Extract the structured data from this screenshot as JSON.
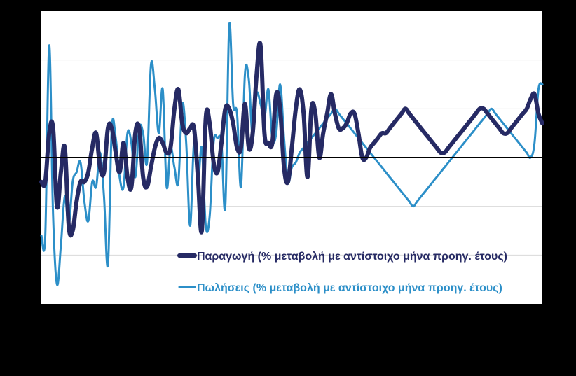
{
  "chart_data": {
    "type": "line",
    "title": "",
    "xlabel": "",
    "ylabel": "",
    "ylim": [
      -3,
      3
    ],
    "grid": true,
    "legend_position": "bottom-right",
    "colors": {
      "background": "#000000",
      "plot_area": "#ffffff",
      "gridline": "#d9d9d9",
      "zero_line": "#000000",
      "production": "#262A64",
      "sales": "#2C8FC8"
    },
    "x": [
      1,
      2,
      3,
      4,
      5,
      6,
      7,
      8,
      9,
      10,
      11,
      12,
      13,
      14,
      15,
      16,
      17,
      18,
      19,
      20,
      21,
      22,
      23,
      24,
      25,
      26,
      27,
      28,
      29,
      30,
      31,
      32,
      33,
      34,
      35,
      36,
      37,
      38,
      39,
      40,
      41,
      42,
      43,
      44,
      45,
      46,
      47,
      48,
      49,
      50,
      51,
      52,
      53,
      54,
      55,
      56,
      57,
      58,
      59,
      60,
      61,
      62,
      63,
      64,
      65,
      66,
      67,
      68,
      69,
      70,
      71,
      72,
      73,
      74,
      75,
      76,
      77,
      78,
      79,
      80,
      81,
      82,
      83,
      84,
      85,
      86,
      87,
      88,
      89,
      90,
      91,
      92,
      93,
      94,
      95,
      96,
      97,
      98,
      99,
      100,
      101,
      102,
      103,
      104,
      105,
      106,
      107,
      108,
      109,
      110,
      111,
      112,
      113,
      114,
      115,
      116,
      117,
      118,
      119,
      120,
      121,
      122,
      123,
      124,
      125,
      126,
      127,
      128,
      129
    ],
    "series": [
      {
        "name": "Παραγωγή (% μεταβολή με αντίστοιχο μήνα προηγ. έτους)",
        "color": "#262A64",
        "values": [
          -0.5,
          -0.5,
          0.5,
          0.6,
          -1.0,
          -0.3,
          0.2,
          -1.4,
          -1.5,
          -0.9,
          -0.5,
          -0.5,
          -0.3,
          0.2,
          0.5,
          -0.2,
          -0.3,
          0.6,
          0.6,
          0.1,
          -0.3,
          0.3,
          -0.4,
          -0.6,
          0.5,
          0.6,
          -0.4,
          -0.6,
          -0.2,
          0.2,
          0.4,
          0.3,
          0.1,
          0.2,
          1.0,
          1.4,
          0.7,
          0.5,
          0.6,
          0.6,
          -0.4,
          -1.5,
          0.8,
          0.7,
          -0.1,
          -0.3,
          0.3,
          1.0,
          1.0,
          0.7,
          0.2,
          0.2,
          1.1,
          0.2,
          0.5,
          1.7,
          2.3,
          0.5,
          0.3,
          0.3,
          1.3,
          1.0,
          -0.2,
          -0.5,
          0.2,
          1.0,
          1.4,
          0.9,
          -0.4,
          1.0,
          0.9,
          0.0,
          0.5,
          0.9,
          1.3,
          0.9,
          0.6,
          0.6,
          0.7,
          0.9,
          0.9,
          0.5,
          0.0,
          0.0,
          0.2,
          0.3,
          0.4,
          0.5,
          0.5,
          0.6,
          0.7,
          0.8,
          0.9,
          1.0,
          0.9,
          0.8,
          0.7,
          0.6,
          0.5,
          0.4,
          0.3,
          0.2,
          0.1,
          0.1,
          0.2,
          0.3,
          0.4,
          0.5,
          0.6,
          0.7,
          0.8,
          0.9,
          1.0,
          1.0,
          0.9,
          0.8,
          0.7,
          0.6,
          0.5,
          0.5,
          0.6,
          0.7,
          0.8,
          0.9,
          1.0,
          1.2,
          1.3,
          0.9,
          0.7
        ]
      },
      {
        "name": "Πωλήσεις (% μεταβολή με αντίστοιχο μήνα προηγ. έτους)",
        "color": "#2C8FC8",
        "values": [
          -1.6,
          -1.6,
          2.3,
          -1.2,
          -2.6,
          -1.8,
          -0.8,
          -1.4,
          -0.5,
          -0.3,
          -0.1,
          -0.9,
          -1.3,
          -0.5,
          -0.6,
          0.1,
          -0.8,
          -2.2,
          0.6,
          0.4,
          -0.4,
          -0.6,
          0.5,
          0.3,
          -0.4,
          0.6,
          0.5,
          -0.1,
          1.9,
          1.4,
          0.5,
          1.4,
          -0.6,
          0.2,
          -0.2,
          -0.5,
          1.1,
          0.3,
          -1.4,
          0.3,
          -0.5,
          0.2,
          -1.4,
          -1.2,
          0.3,
          0.4,
          0.3,
          -1.0,
          2.7,
          1.1,
          0.9,
          -0.6,
          1.7,
          1.6,
          0.4,
          1.3,
          1.1,
          0.8,
          1.4,
          0.4,
          0.5,
          1.5,
          0.4,
          -0.5,
          -0.2,
          -0.1,
          0.1,
          0.2,
          0.3,
          0.4,
          0.5,
          0.6,
          0.7,
          0.8,
          0.9,
          1.0,
          0.9,
          0.8,
          0.7,
          0.6,
          0.5,
          0.4,
          0.3,
          0.2,
          0.1,
          0.0,
          -0.1,
          -0.2,
          -0.3,
          -0.4,
          -0.5,
          -0.6,
          -0.7,
          -0.8,
          -0.9,
          -1.0,
          -0.9,
          -0.8,
          -0.7,
          -0.6,
          -0.5,
          -0.4,
          -0.3,
          -0.2,
          -0.1,
          0.0,
          0.1,
          0.2,
          0.3,
          0.4,
          0.5,
          0.6,
          0.7,
          0.8,
          0.9,
          1.0,
          0.9,
          0.8,
          0.7,
          0.6,
          0.5,
          0.4,
          0.3,
          0.2,
          0.1,
          0.0,
          0.3,
          1.4,
          1.5
        ]
      }
    ]
  }
}
